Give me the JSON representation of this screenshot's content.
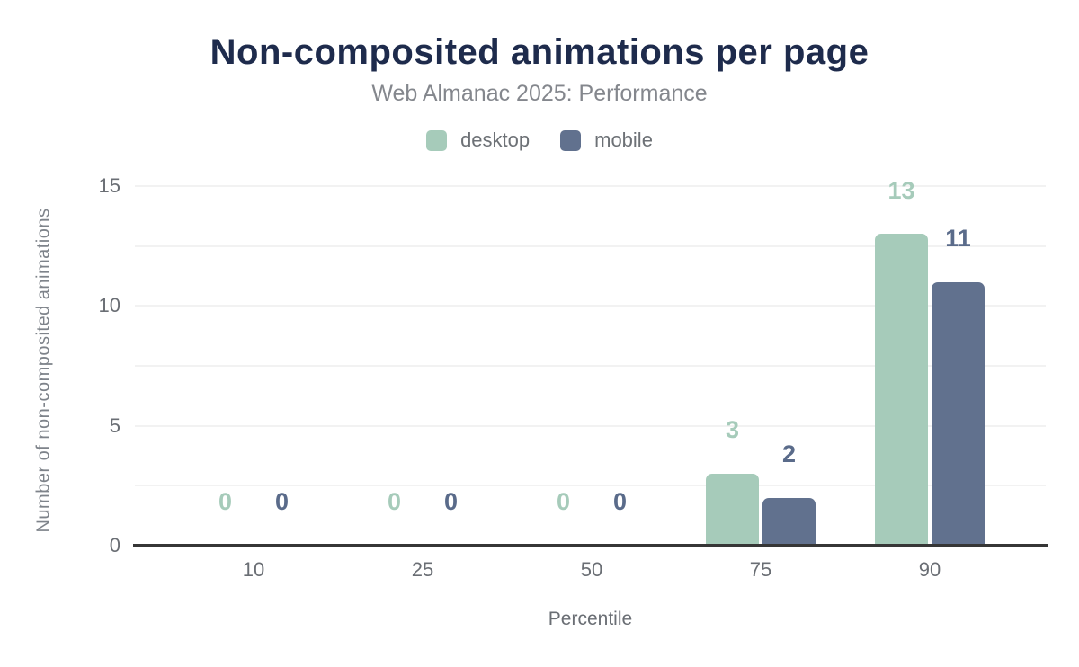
{
  "chart_data": {
    "type": "bar",
    "title": "Non-composited animations per page",
    "subtitle": "Web Almanac 2025: Performance",
    "xlabel": "Percentile",
    "ylabel": "Number of non-composited animations",
    "categories": [
      "10",
      "25",
      "50",
      "75",
      "90"
    ],
    "series": [
      {
        "name": "desktop",
        "color": "#a6cbba",
        "label_color": "#a6cbba",
        "values": [
          0,
          0,
          0,
          3,
          13
        ]
      },
      {
        "name": "mobile",
        "color": "#61718e",
        "label_color": "#5a6b8a",
        "values": [
          0,
          0,
          0,
          2,
          11
        ]
      }
    ],
    "ylim": [
      0,
      15
    ],
    "yticks": [
      0,
      5,
      10,
      15
    ],
    "minor_grid_step": 2.5,
    "grid": "on",
    "legend_position": "top",
    "value_labels": "above-bars",
    "colors": {
      "title": "#1e2b4c",
      "subtitle": "#84878d",
      "axis_line": "#363636",
      "gridline": "#f2f2f2",
      "tick_text": "#6a6e74",
      "axis_title_text": "#7e838a",
      "legend_text": "#6d7176",
      "background": "#ffffff"
    }
  }
}
